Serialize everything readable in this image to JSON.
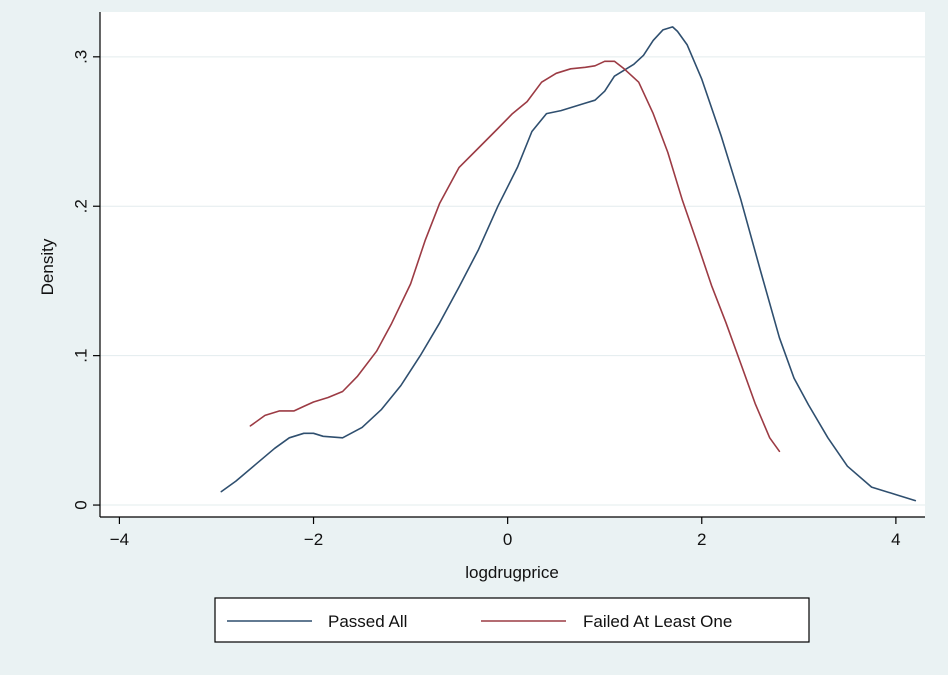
{
  "chart_data": {
    "type": "line",
    "title": "",
    "xlabel": "logdrugprice",
    "ylabel": "Density",
    "xlim": [
      -4.2,
      4.3
    ],
    "ylim": [
      -0.008,
      0.33
    ],
    "xticks": [
      -4,
      -2,
      0,
      2,
      4
    ],
    "xtick_labels": [
      "−4",
      "−2",
      "0",
      "2",
      "4"
    ],
    "yticks": [
      0,
      0.1,
      0.2,
      0.3
    ],
    "ytick_labels": [
      "0",
      ".1",
      ".2",
      ".3"
    ],
    "grid": true,
    "legend_position": "bottom",
    "colors": {
      "page_background": "#eaf2f3",
      "plot_background": "#ffffff",
      "grid": "#e3ecee",
      "axis": "#000000"
    },
    "series": [
      {
        "name": "Passed All",
        "color": "#2f4f6f",
        "x": [
          -2.95,
          -2.8,
          -2.6,
          -2.4,
          -2.25,
          -2.1,
          -2.0,
          -1.9,
          -1.7,
          -1.5,
          -1.3,
          -1.1,
          -0.9,
          -0.7,
          -0.5,
          -0.3,
          -0.1,
          0.1,
          0.25,
          0.4,
          0.55,
          0.7,
          0.8,
          0.9,
          1.0,
          1.1,
          1.3,
          1.4,
          1.5,
          1.6,
          1.7,
          1.75,
          1.85,
          2.0,
          2.2,
          2.4,
          2.6,
          2.8,
          2.95,
          3.1,
          3.3,
          3.5,
          3.75,
          4.0,
          4.2
        ],
        "y": [
          0.009,
          0.016,
          0.027,
          0.038,
          0.045,
          0.048,
          0.048,
          0.046,
          0.045,
          0.052,
          0.064,
          0.08,
          0.1,
          0.122,
          0.146,
          0.171,
          0.2,
          0.226,
          0.25,
          0.262,
          0.264,
          0.267,
          0.269,
          0.271,
          0.277,
          0.287,
          0.295,
          0.301,
          0.311,
          0.318,
          0.32,
          0.317,
          0.308,
          0.285,
          0.247,
          0.205,
          0.158,
          0.112,
          0.085,
          0.067,
          0.045,
          0.026,
          0.012,
          0.007,
          0.003
        ]
      },
      {
        "name": "Failed At Least One",
        "color": "#9c3b44",
        "x": [
          -2.65,
          -2.5,
          -2.35,
          -2.2,
          -2.1,
          -2.0,
          -1.85,
          -1.7,
          -1.55,
          -1.35,
          -1.2,
          -1.0,
          -0.85,
          -0.7,
          -0.5,
          -0.3,
          -0.1,
          0.05,
          0.2,
          0.35,
          0.5,
          0.65,
          0.8,
          0.9,
          1.0,
          1.1,
          1.2,
          1.35,
          1.5,
          1.65,
          1.8,
          1.95,
          2.1,
          2.25,
          2.4,
          2.55,
          2.7,
          2.8
        ],
        "y": [
          0.053,
          0.06,
          0.063,
          0.063,
          0.066,
          0.069,
          0.072,
          0.076,
          0.086,
          0.103,
          0.121,
          0.148,
          0.177,
          0.202,
          0.226,
          0.239,
          0.252,
          0.262,
          0.27,
          0.283,
          0.289,
          0.292,
          0.293,
          0.294,
          0.297,
          0.297,
          0.292,
          0.283,
          0.262,
          0.236,
          0.204,
          0.176,
          0.147,
          0.122,
          0.095,
          0.068,
          0.045,
          0.036
        ]
      }
    ]
  }
}
